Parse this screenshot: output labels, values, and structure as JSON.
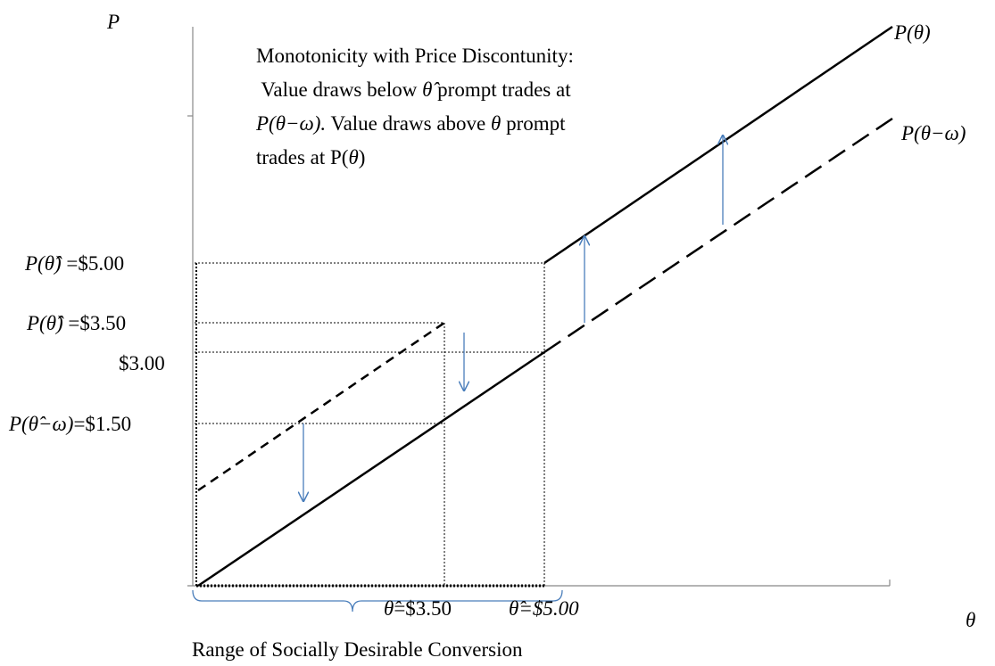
{
  "axes": {
    "y_label": "P",
    "x_label": "θ"
  },
  "curves": {
    "upper": "P(θ)",
    "lower": "P(θ−ω)"
  },
  "annotation": {
    "line1": "Monotonicity with Price Discontunity:",
    "line2": [
      " Value draws below ",
      "θ̂",
      " prompt trades at"
    ],
    "line3": [
      "P(θ−ω).",
      " Value draws above ",
      "θ",
      " prompt"
    ],
    "line4": [
      "trades at P(",
      "θ",
      ")"
    ]
  },
  "y_labels": [
    {
      "symbol": "P(θ̂)",
      "value": " =$5.00"
    },
    {
      "symbol": "P(θ̂)",
      "value": " =$3.50"
    },
    {
      "value": "$3.00"
    },
    {
      "symbol": "P(θ̂−ω)",
      "value": "=$1.50"
    }
  ],
  "x_labels": [
    {
      "symbol": "θ̂",
      "value": "=$3.50"
    },
    {
      "symbol": "θ̂",
      "value": "=$5.00"
    }
  ],
  "brace_label": "Range of Socially Desirable Conversion"
}
